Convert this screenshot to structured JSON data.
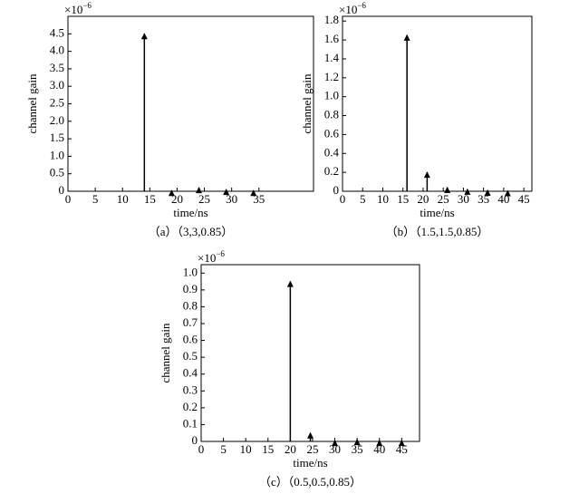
{
  "chart_data": [
    {
      "type": "stem",
      "caption": "（a）（3,3,0.85）",
      "x_label": "time/ns",
      "y_label": "channel gain",
      "multiplier": "×10",
      "multiplier_exponent": "−6",
      "color": "#000000",
      "x": [
        14,
        19,
        24,
        29,
        34
      ],
      "values": [
        4.5,
        0.02,
        0.1,
        0.05,
        0.02
      ],
      "xlim": [
        0,
        45
      ],
      "ylim": [
        0,
        5
      ],
      "xticks": [
        0,
        5,
        10,
        15,
        20,
        25,
        30,
        35
      ],
      "yticks": [
        0,
        0.5,
        {
          "value": 1,
          "label": "1.0"
        },
        1.5,
        {
          "value": 2,
          "label": "2.0"
        },
        2.5,
        {
          "value": 3,
          "label": "3.0"
        },
        3.5,
        {
          "value": 4,
          "label": "4.0"
        },
        4.5
      ]
    },
    {
      "type": "stem",
      "caption": "（b）（1.5,1.5,0.85）",
      "x_label": "time/ns",
      "y_label": "channel gain",
      "multiplier": "×10",
      "multiplier_exponent": "−6",
      "color": "#000000",
      "x": [
        16,
        21,
        26,
        31,
        36,
        41
      ],
      "values": [
        1.65,
        0.2,
        0.04,
        0.02,
        0.01,
        0.005
      ],
      "xlim": [
        0,
        47
      ],
      "ylim": [
        0,
        1.85
      ],
      "xticks": [
        0,
        5,
        10,
        15,
        20,
        25,
        30,
        35,
        40,
        45
      ],
      "yticks": [
        0,
        0.2,
        0.4,
        0.6,
        0.8,
        {
          "value": 1,
          "label": "1.0"
        },
        1.2,
        1.4,
        1.6,
        1.8
      ]
    },
    {
      "type": "stem",
      "caption": "（c）（0.5,0.5,0.85）",
      "x_label": "time/ns",
      "y_label": "channel gain",
      "multiplier": "×10",
      "multiplier_exponent": "−6",
      "color": "#000000",
      "x": [
        20,
        24.5,
        30,
        35,
        40,
        45
      ],
      "values": [
        0.95,
        0.05,
        0.005,
        0.01,
        0.005,
        0.005
      ],
      "xlim": [
        0,
        49
      ],
      "ylim": [
        0,
        1.05
      ],
      "xticks": [
        0,
        5,
        10,
        15,
        20,
        25,
        30,
        35,
        40,
        45
      ],
      "yticks": [
        0,
        0.1,
        0.2,
        0.3,
        0.4,
        0.5,
        0.6,
        0.7,
        0.8,
        0.9,
        {
          "value": 1,
          "label": "1.0"
        }
      ]
    }
  ]
}
